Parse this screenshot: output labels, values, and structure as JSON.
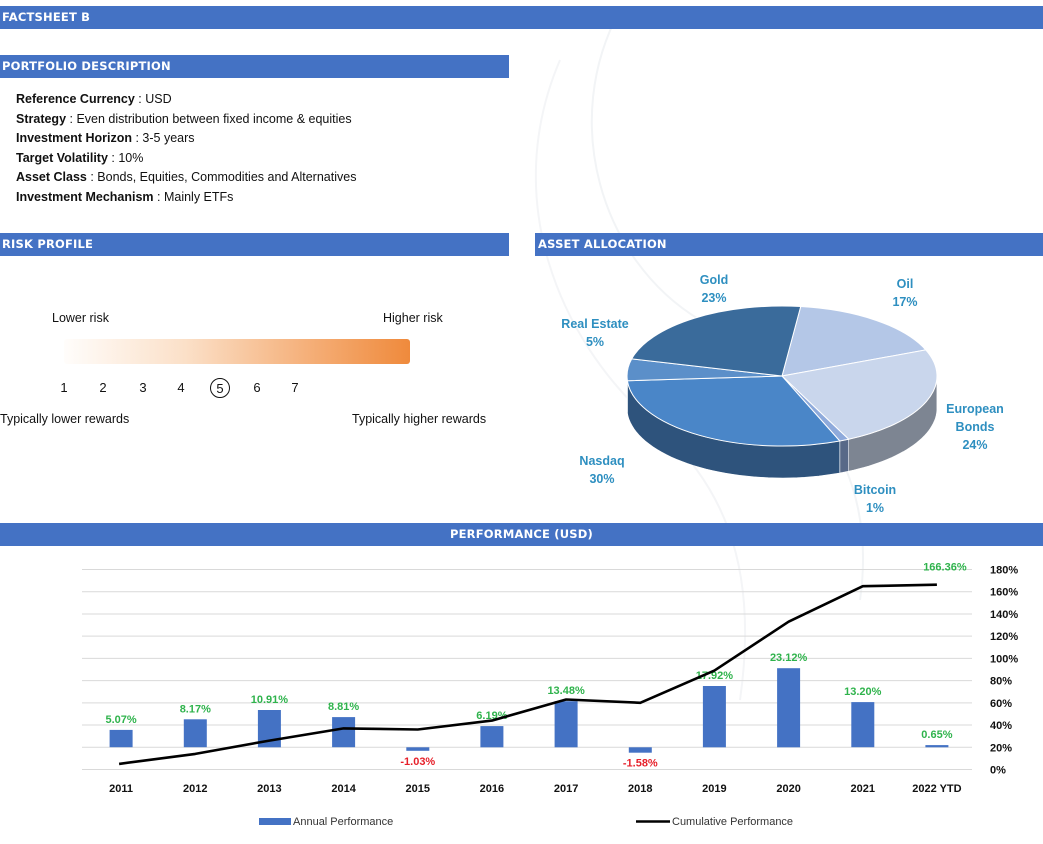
{
  "header": {
    "title": "FACTSHEET B"
  },
  "portfolio": {
    "title": "PORTFOLIO DESCRIPTION",
    "rows": [
      {
        "label": "Reference Currency",
        "value": " : USD"
      },
      {
        "label": "Strategy",
        "value": " : Even distribution between fixed income & equities"
      },
      {
        "label": "Investment Horizon",
        "value": " : 3-5 years"
      },
      {
        "label": "Target Volatility",
        "value": " : 10%"
      },
      {
        "label": "Asset Class",
        "value": " : Bonds, Equities, Commodities and Alternatives"
      },
      {
        "label": "Investment Mechanism",
        "value": " : Mainly ETFs"
      }
    ]
  },
  "risk": {
    "title": "RISK PROFILE",
    "lower_label": "Lower risk",
    "higher_label": "Higher risk",
    "scale": [
      "1",
      "2",
      "3",
      "4",
      "5",
      "6",
      "7"
    ],
    "selected": 5,
    "lower_rewards": "Typically lower rewards",
    "higher_rewards": "Typically higher rewards",
    "gradient_colors": [
      "#fffdfb",
      "#ef8a3c"
    ]
  },
  "chart_data": [
    {
      "type": "pie",
      "title": "ASSET ALLOCATION",
      "slices": [
        {
          "name": "Oil",
          "value": 17,
          "label": "17%",
          "color": "#b4c7e7"
        },
        {
          "name": "European Bonds",
          "value": 24,
          "label": "24%",
          "color": "#c9d6ec"
        },
        {
          "name": "Bitcoin",
          "value": 1,
          "label": "1%",
          "color": "#8eaadb"
        },
        {
          "name": "Nasdaq",
          "value": 30,
          "label": "30%",
          "color": "#4a86c8"
        },
        {
          "name": "Real Estate",
          "value": 5,
          "label": "5%",
          "color": "#5b8fc9"
        },
        {
          "name": "Gold",
          "value": 23,
          "label": "23%",
          "color": "#3a6b9b"
        }
      ],
      "label_color": "#2e8fc0"
    },
    {
      "type": "bar",
      "title": "PERFORMANCE (USD)",
      "categories": [
        "2011",
        "2012",
        "2013",
        "2014",
        "2015",
        "2016",
        "2017",
        "2018",
        "2019",
        "2020",
        "2021",
        "2022 YTD"
      ],
      "series": [
        {
          "name": "Annual Performance",
          "type": "bar",
          "values": [
            5.07,
            8.17,
            10.91,
            8.81,
            -1.03,
            6.19,
            13.48,
            -1.58,
            17.92,
            23.12,
            13.2,
            0.65
          ],
          "labels": [
            "5.07%",
            "8.17%",
            "10.91%",
            "8.81%",
            "-1.03%",
            "6.19%",
            "13.48%",
            "-1.58%",
            "17.92%",
            "23.12%",
            "13.20%",
            "0.65%"
          ],
          "color": "#4472c4"
        },
        {
          "name": "Cumulative Performance",
          "type": "line",
          "values": [
            5,
            14,
            26,
            37,
            36,
            44,
            63,
            60,
            89,
            133,
            165,
            166.36
          ],
          "end_label": "166.36%",
          "color": "#000000"
        }
      ],
      "y_axis": {
        "position": "right",
        "ticks": [
          "0%",
          "20%",
          "40%",
          "60%",
          "80%",
          "100%",
          "120%",
          "140%",
          "160%",
          "180%"
        ],
        "ylim": [
          0,
          180
        ]
      },
      "grid": true,
      "legend": "bottom",
      "positive_color": "#2fb34c",
      "negative_color": "#e6202a"
    }
  ]
}
